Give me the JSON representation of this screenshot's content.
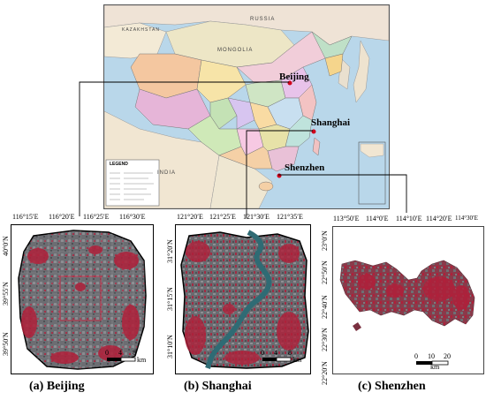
{
  "map": {
    "countries": {
      "russia": "RUSSIA",
      "mongolia": "MONGOLIA",
      "india": "INDIA",
      "kazakhstan": "KAZAKHSTAN"
    },
    "cities": {
      "beijing": "Beijing",
      "shanghai": "Shanghai",
      "shenzhen": "Shenzhen"
    },
    "legend_title": "LEGEND"
  },
  "panels": {
    "beijing": {
      "caption": "(a) Beijing",
      "top_ticks": [
        "116°15′E",
        "116°20′E",
        "116°25′E",
        "116°30′E"
      ],
      "left_ticks": [
        "40°0′N",
        "39°55′N",
        "39°50′N"
      ],
      "scale": {
        "labels": [
          "0",
          "4",
          "8"
        ],
        "unit": "km"
      }
    },
    "shanghai": {
      "caption": "(b) Shanghai",
      "top_ticks": [
        "121°20′E",
        "121°25′E",
        "121°30′E",
        "121°35′E"
      ],
      "left_ticks": [
        "31°20′N",
        "31°15′N",
        "31°10′N"
      ],
      "scale": {
        "labels": [
          "0",
          "4",
          "8"
        ],
        "unit": "km"
      }
    },
    "shenzhen": {
      "caption": "(c) Shenzhen",
      "top_ticks": [
        "113°50′E",
        "114°0′E",
        "114°10′E",
        "114°20′E",
        "114°30′E"
      ],
      "left_ticks": [
        "23°0′N",
        "22°50′N",
        "22°40′N",
        "22°30′N",
        "22°20′N"
      ],
      "scale": {
        "labels": [
          "0",
          "10",
          "20"
        ],
        "unit": "km"
      }
    }
  },
  "colors": {
    "urban_red": "#b0203a",
    "water": "#2f6b74",
    "grey": "#6d6d70"
  }
}
